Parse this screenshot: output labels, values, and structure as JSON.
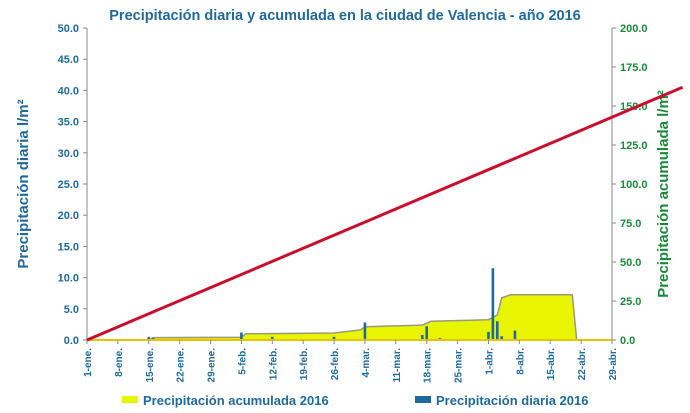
{
  "chart_data": {
    "type": "bar",
    "title": "Precipitación diaria y acumulada en la ciudad de Valencia - año 2016",
    "ylabel": "Precipitación diaria l/m²",
    "y2label": "Precipitación acumulada l/m²",
    "ylim": [
      0,
      50
    ],
    "y2lim": [
      0,
      200
    ],
    "yticks": [
      "0.0",
      "5.0",
      "10.0",
      "15.0",
      "20.0",
      "25.0",
      "30.0",
      "35.0",
      "40.0",
      "45.0",
      "50.0"
    ],
    "y2ticks": [
      "0.0",
      "25.0",
      "50.0",
      "75.0",
      "100.0",
      "125.0",
      "150.0",
      "175.0",
      "200.0"
    ],
    "xticks": [
      "1-ene.",
      "8-ene.",
      "15-ene.",
      "22-ene.",
      "29-ene.",
      "5-feb.",
      "12-feb.",
      "19-feb.",
      "26-feb.",
      "4-mar.",
      "11-mar.",
      "18-mar.",
      "25-mar.",
      "1-abr.",
      "8-abr.",
      "15-abr.",
      "22-abr.",
      "29-abr."
    ],
    "x_day_range": [
      0,
      119
    ],
    "grid": false,
    "legend_position": "bottom",
    "series": [
      {
        "name": "Precipitación acumulada 2016",
        "kind": "area",
        "axis": "right",
        "color": "#e8f500",
        "points": [
          [
            0,
            0
          ],
          [
            14,
            0
          ],
          [
            15,
            1.5
          ],
          [
            35,
            1.8
          ],
          [
            36,
            4.0
          ],
          [
            56,
            4.5
          ],
          [
            62,
            6.5
          ],
          [
            63,
            8.5
          ],
          [
            76,
            9.5
          ],
          [
            78,
            12.0
          ],
          [
            91,
            13.0
          ],
          [
            93,
            16.0
          ],
          [
            94,
            27.0
          ],
          [
            96,
            29.0
          ],
          [
            110,
            29.0
          ],
          [
            111,
            0
          ]
        ]
      },
      {
        "name": "Precipitación diaria 2016",
        "kind": "bar",
        "axis": "left",
        "color": "#1f6a9a",
        "days": [
          14,
          15,
          35,
          42,
          56,
          63,
          76,
          77,
          80,
          91,
          92,
          93,
          94,
          97
        ],
        "values": [
          0.5,
          0.3,
          1.2,
          0.5,
          0.5,
          2.8,
          0.8,
          2.2,
          0.3,
          1.3,
          11.5,
          3.0,
          0.6,
          1.5
        ]
      },
      {
        "name": "",
        "kind": "line",
        "axis": "right",
        "color": "#c8102e",
        "x": [
          0,
          135
        ],
        "values": [
          0,
          162
        ]
      }
    ]
  }
}
